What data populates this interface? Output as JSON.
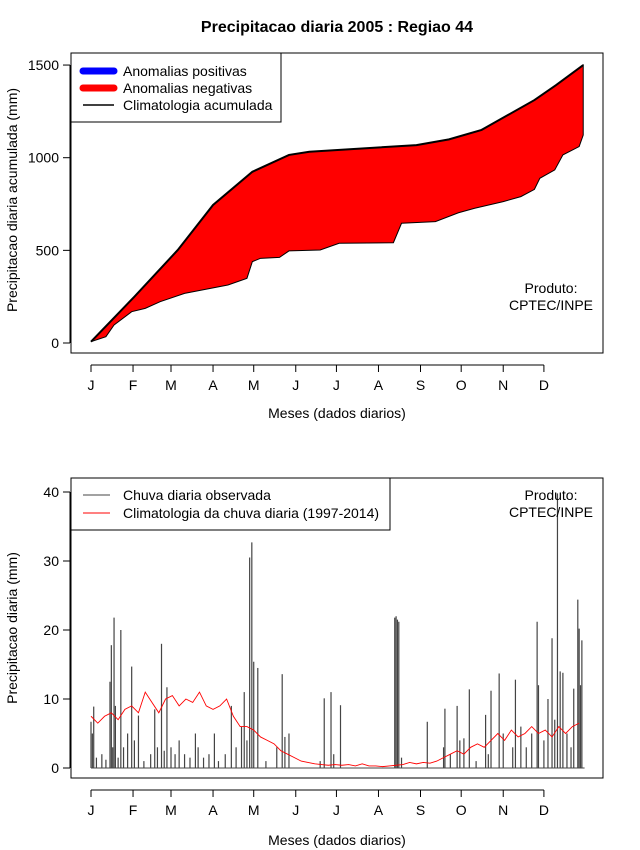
{
  "colors": {
    "positive": "#0000ff",
    "negative": "#ff0000",
    "clim": "#000000",
    "obs": "#444444",
    "clim_daily": "#ff0000"
  },
  "chart_data": [
    {
      "type": "area",
      "title": "Precipitacao diaria 2005 : Regiao 44",
      "xlabel": "Meses (dados diarios)",
      "ylabel": "Precipitacao diaria acumulada (mm)",
      "xticks": [
        {
          "day": 1,
          "label": "J"
        },
        {
          "day": 32,
          "label": "F"
        },
        {
          "day": 60,
          "label": "M"
        },
        {
          "day": 91,
          "label": "A"
        },
        {
          "day": 121,
          "label": "M"
        },
        {
          "day": 152,
          "label": "J"
        },
        {
          "day": 182,
          "label": "J"
        },
        {
          "day": 213,
          "label": "A"
        },
        {
          "day": 244,
          "label": "S"
        },
        {
          "day": 274,
          "label": "O"
        },
        {
          "day": 305,
          "label": "N"
        },
        {
          "day": 335,
          "label": "D"
        }
      ],
      "yticks": [
        "0",
        "500",
        "1000",
        "1500"
      ],
      "ylim": [
        0,
        1500
      ],
      "legend": [
        "Anomalias positivas",
        "Anomalias negativas",
        "Climatologia acumulada"
      ],
      "legend_position": "top-left",
      "annotation": [
        "Produto:",
        "CPTEC/INPE"
      ],
      "climatology_cumulative": [
        [
          1,
          7
        ],
        [
          33,
          250
        ],
        [
          65,
          502
        ],
        [
          91,
          745
        ],
        [
          120,
          924
        ],
        [
          147,
          1015
        ],
        [
          162,
          1032
        ],
        [
          241,
          1068
        ],
        [
          265,
          1099
        ],
        [
          289,
          1150
        ],
        [
          328,
          1311
        ],
        [
          344,
          1392
        ],
        [
          364,
          1500
        ]
      ],
      "observed_cumulative": [
        [
          1,
          7
        ],
        [
          12,
          34
        ],
        [
          18,
          97
        ],
        [
          31,
          169
        ],
        [
          41,
          187
        ],
        [
          52,
          223
        ],
        [
          70,
          268
        ],
        [
          102,
          313
        ],
        [
          116,
          349
        ],
        [
          120,
          439
        ],
        [
          126,
          457
        ],
        [
          140,
          462
        ],
        [
          147,
          497
        ],
        [
          170,
          502
        ],
        [
          184,
          538
        ],
        [
          224,
          541
        ],
        [
          230,
          646
        ],
        [
          255,
          655
        ],
        [
          272,
          703
        ],
        [
          284,
          727
        ],
        [
          305,
          763
        ],
        [
          318,
          790
        ],
        [
          328,
          829
        ],
        [
          332,
          889
        ],
        [
          343,
          934
        ],
        [
          349,
          1015
        ],
        [
          361,
          1060
        ],
        [
          364,
          1122
        ],
        [
          364,
          1500
        ]
      ]
    },
    {
      "type": "bar+line",
      "xlabel": "Meses (dados diarios)",
      "ylabel": "Precipitacao diaria (mm)",
      "yticks": [
        "0",
        "10",
        "20",
        "30",
        "40"
      ],
      "ylim": [
        0,
        40
      ],
      "legend": [
        "Chuva diaria observada",
        "Climatologia da chuva diaria (1997-2014)"
      ],
      "legend_position": "top-left",
      "annotation": [
        "Produto:",
        "CPTEC/INPE"
      ],
      "observed_daily": [
        [
          1,
          6.7
        ],
        [
          2,
          5
        ],
        [
          3,
          8.9
        ],
        [
          5,
          1.5
        ],
        [
          9,
          2
        ],
        [
          12,
          1.2
        ],
        [
          15,
          12.5
        ],
        [
          16,
          17.8
        ],
        [
          17,
          3
        ],
        [
          18,
          21.8
        ],
        [
          19,
          9
        ],
        [
          21,
          1.5
        ],
        [
          23,
          20
        ],
        [
          25,
          3
        ],
        [
          28,
          5
        ],
        [
          31,
          14.7
        ],
        [
          33,
          4
        ],
        [
          36,
          7.6
        ],
        [
          40,
          1
        ],
        [
          45,
          2
        ],
        [
          48,
          8.5
        ],
        [
          50,
          3
        ],
        [
          53,
          18
        ],
        [
          55,
          2.5
        ],
        [
          57,
          11.7
        ],
        [
          60,
          3
        ],
        [
          63,
          2
        ],
        [
          66,
          4
        ],
        [
          70,
          2
        ],
        [
          74,
          1.5
        ],
        [
          78,
          5
        ],
        [
          80,
          3
        ],
        [
          84,
          1.5
        ],
        [
          88,
          2
        ],
        [
          92,
          5
        ],
        [
          95,
          1
        ],
        [
          100,
          2
        ],
        [
          104.5,
          9
        ],
        [
          108,
          3
        ],
        [
          112,
          6
        ],
        [
          114,
          11
        ],
        [
          116,
          4
        ],
        [
          118,
          30.5
        ],
        [
          119.6,
          32.7
        ],
        [
          121,
          15.4
        ],
        [
          124,
          14.5
        ],
        [
          130,
          1
        ],
        [
          138,
          3
        ],
        [
          142,
          13.6
        ],
        [
          144,
          4.5
        ],
        [
          147,
          5
        ],
        [
          170,
          1
        ],
        [
          173,
          10.1
        ],
        [
          178,
          11
        ],
        [
          180,
          2
        ],
        [
          185,
          9.1
        ],
        [
          225,
          21.8
        ],
        [
          226,
          22
        ],
        [
          227,
          21.5
        ],
        [
          228,
          21.2
        ],
        [
          230,
          1.5
        ],
        [
          249,
          6.7
        ],
        [
          261,
          3
        ],
        [
          262,
          8.6
        ],
        [
          266,
          2
        ],
        [
          271,
          9
        ],
        [
          273,
          4
        ],
        [
          276,
          4.3
        ],
        [
          280,
          11.4
        ],
        [
          285,
          1
        ],
        [
          292,
          7.7
        ],
        [
          294,
          2
        ],
        [
          296,
          11.2
        ],
        [
          302,
          13.7
        ],
        [
          305,
          5
        ],
        [
          312,
          3
        ],
        [
          314,
          12.8
        ],
        [
          318,
          6
        ],
        [
          322,
          3
        ],
        [
          326,
          5
        ],
        [
          330,
          21.2
        ],
        [
          331,
          12
        ],
        [
          335,
          4
        ],
        [
          338,
          10
        ],
        [
          341,
          18.8
        ],
        [
          343,
          7
        ],
        [
          345,
          39.8
        ],
        [
          347,
          14
        ],
        [
          349,
          13.8
        ],
        [
          352,
          5
        ],
        [
          355,
          3
        ],
        [
          357,
          11.5
        ],
        [
          360,
          24.4
        ],
        [
          361,
          20.2
        ],
        [
          362,
          12
        ],
        [
          363,
          18.5
        ]
      ],
      "climatology_daily_5day": [
        7.5,
        6.5,
        7.5,
        8,
        7,
        8.5,
        9,
        8,
        11,
        9.5,
        8,
        10,
        10.5,
        9,
        10,
        9.5,
        11,
        9,
        8.5,
        9,
        10,
        7.5,
        6,
        6,
        5.5,
        4.5,
        4,
        3.5,
        2.5,
        2,
        1.5,
        1,
        0.8,
        0.6,
        0.5,
        0.4,
        0.5,
        0.4,
        0.5,
        0.3,
        0.6,
        0.3,
        0.3,
        0.2,
        0.3,
        0.4,
        0.5,
        0.8,
        0.6,
        0.8,
        0.7,
        1,
        1.5,
        2,
        2.5,
        2,
        3,
        3.5,
        3,
        4,
        5,
        4,
        5.5,
        4.5,
        5,
        6,
        5,
        5.5,
        4.5,
        6,
        5,
        6,
        6.5
      ]
    }
  ]
}
